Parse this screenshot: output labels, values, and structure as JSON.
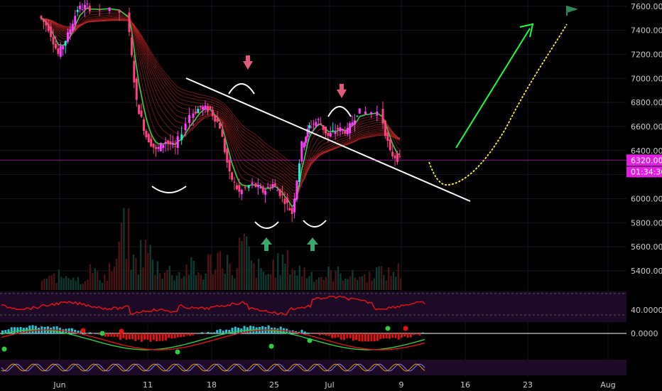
{
  "chart_data": {
    "type": "candlestick",
    "y_ticks": [
      5400,
      5600,
      5800,
      6000,
      6200,
      6400,
      6600,
      6800,
      7000,
      7200,
      7400,
      7600
    ],
    "ylim": [
      5240,
      7640
    ],
    "x_ticks": [
      "Jun",
      "11",
      "18",
      "25",
      "Jul",
      "9",
      "16",
      "23",
      "Aug"
    ],
    "last_price_label": "6320.00",
    "countdown_label": "01:34:36",
    "osc_level_label": "40.0000",
    "macd_zero_label": "0.0000",
    "price_path": [
      [
        "Jun",
        7520
      ],
      [
        "Jun",
        7420
      ],
      [
        "Jun",
        7200
      ],
      [
        "Jun",
        7360
      ],
      [
        "Jun",
        7580
      ],
      [
        "Jun",
        7600
      ],
      [
        "11",
        7550
      ],
      [
        "11",
        6800
      ],
      [
        "11",
        6520
      ],
      [
        "11",
        6400
      ],
      [
        "11",
        6480
      ],
      [
        "11",
        6420
      ],
      [
        "18",
        6700
      ],
      [
        "18",
        6760
      ],
      [
        "18",
        6740
      ],
      [
        "18",
        6600
      ],
      [
        "18",
        6200
      ],
      [
        "18",
        6050
      ],
      [
        "25",
        6120
      ],
      [
        "25",
        6060
      ],
      [
        "25",
        6120
      ],
      [
        "25",
        6020
      ],
      [
        "25",
        5880
      ],
      [
        "25",
        6450
      ],
      [
        "Jul",
        6600
      ],
      [
        "Jul",
        6650
      ],
      [
        "Jul",
        6520
      ],
      [
        "Jul",
        6580
      ],
      [
        "Jul",
        6560
      ],
      [
        "Jul",
        6720
      ],
      [
        "9",
        6720
      ],
      [
        "9",
        6380
      ],
      [
        "9",
        6320
      ]
    ],
    "volume_relative": [
      0.2,
      0.25,
      0.3,
      0.2,
      0.35,
      0.25,
      0.4,
      1.0,
      0.5,
      0.7,
      0.45,
      0.35,
      0.3,
      0.4,
      0.3,
      0.5,
      0.6,
      0.35,
      0.75,
      0.4,
      0.3,
      0.45,
      0.5,
      0.35,
      0.3,
      0.25,
      0.3,
      0.3,
      0.25,
      0.25,
      0.35,
      0.3,
      0.35
    ],
    "annotations": [
      "descending trendline",
      "rounded bottoms (inverse head and shoulders)",
      "rounded tops",
      "down arrows above tops",
      "up arrows below bottoms",
      "projected path with target flag",
      "upward green arrow"
    ],
    "colors": {
      "up_candle": "#ff3dff",
      "up_candle_alt": "#26e8d8",
      "down_candle": "#ff4081",
      "ribbon": "#c62828",
      "fast_ma": "#2ecc40",
      "last_price_tag": "#e21ee2",
      "trendline": "#ffffff",
      "projection": "#ffeb3b",
      "target_arrow": "#1aff3a",
      "osc_line": "#e01313",
      "panel_bg": "#1d0a26",
      "grid": "#16161e"
    }
  }
}
